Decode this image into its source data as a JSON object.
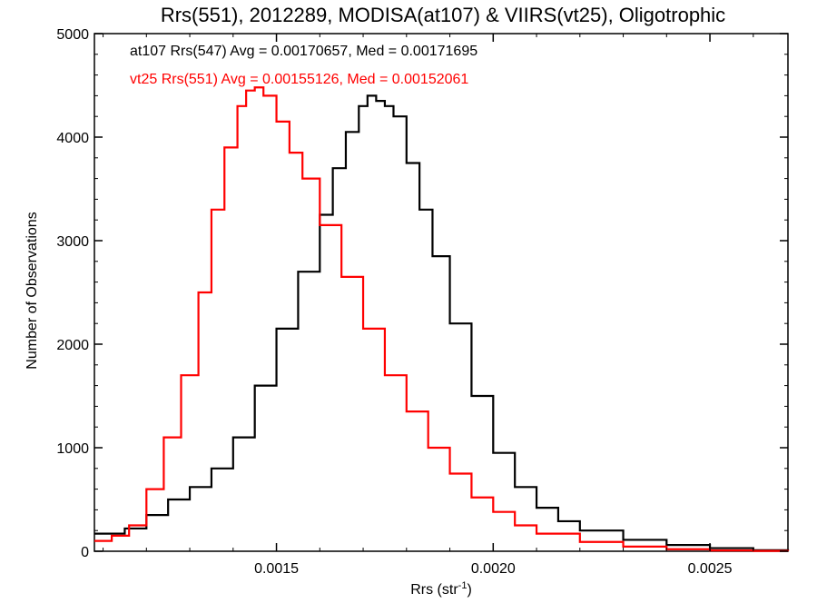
{
  "chart_data": {
    "type": "line",
    "title": "Rrs(551), 2012289, MODISA(at107) & VIIRS(vt25), Oligotrophic",
    "xlabel": "Rrs (str",
    "xlabel_sup": "-1",
    "xlabel_suffix": ")",
    "ylabel": "Number of Observations",
    "xlim": [
      0.00108,
      0.00268
    ],
    "ylim": [
      0,
      5000
    ],
    "x_ticks": [
      0.0015,
      0.002,
      0.0025
    ],
    "x_tick_labels": [
      "0.0015",
      "0.0020",
      "0.0025"
    ],
    "y_ticks": [
      0,
      1000,
      2000,
      3000,
      4000,
      5000
    ],
    "y_tick_labels": [
      "0",
      "1000",
      "2000",
      "3000",
      "4000",
      "5000"
    ],
    "grid": false,
    "annotations": [
      {
        "text": "at107 Rrs(547) Avg = 0.00170657, Med = 0.00171695",
        "color": "#000000"
      },
      {
        "text": "vt25 Rrs(551) Avg = 0.00155126, Med = 0.00152061",
        "color": "#ff0000"
      }
    ],
    "series": [
      {
        "color": "#000000",
        "step": true,
        "x": [
          0.00108,
          0.00115,
          0.0012,
          0.00125,
          0.0013,
          0.00135,
          0.0014,
          0.00145,
          0.0015,
          0.00155,
          0.0016,
          0.00163,
          0.00166,
          0.00169,
          0.00171,
          0.00173,
          0.00175,
          0.00177,
          0.0018,
          0.00183,
          0.00186,
          0.0019,
          0.00195,
          0.002,
          0.00205,
          0.0021,
          0.00215,
          0.0022,
          0.0023,
          0.0024,
          0.0025,
          0.0026,
          0.00268
        ],
        "y": [
          170,
          220,
          350,
          500,
          620,
          800,
          1100,
          1600,
          2150,
          2700,
          3250,
          3700,
          4050,
          4300,
          4400,
          4350,
          4300,
          4200,
          3750,
          3300,
          2850,
          2200,
          1500,
          950,
          620,
          420,
          290,
          200,
          110,
          60,
          30,
          10,
          5
        ]
      },
      {
        "color": "#ff0000",
        "step": true,
        "x": [
          0.00108,
          0.00112,
          0.00116,
          0.0012,
          0.00124,
          0.00128,
          0.00132,
          0.00135,
          0.00138,
          0.00141,
          0.00143,
          0.00145,
          0.00147,
          0.0015,
          0.00153,
          0.00156,
          0.0016,
          0.00165,
          0.0017,
          0.00175,
          0.0018,
          0.00185,
          0.0019,
          0.00195,
          0.002,
          0.00205,
          0.0021,
          0.0022,
          0.0023,
          0.0024,
          0.0025,
          0.0026,
          0.00268
        ],
        "y": [
          100,
          150,
          250,
          600,
          1100,
          1700,
          2500,
          3300,
          3900,
          4300,
          4450,
          4480,
          4400,
          4150,
          3850,
          3600,
          3150,
          2650,
          2150,
          1700,
          1350,
          1000,
          750,
          520,
          380,
          250,
          170,
          90,
          45,
          20,
          8,
          3,
          2
        ]
      }
    ]
  }
}
